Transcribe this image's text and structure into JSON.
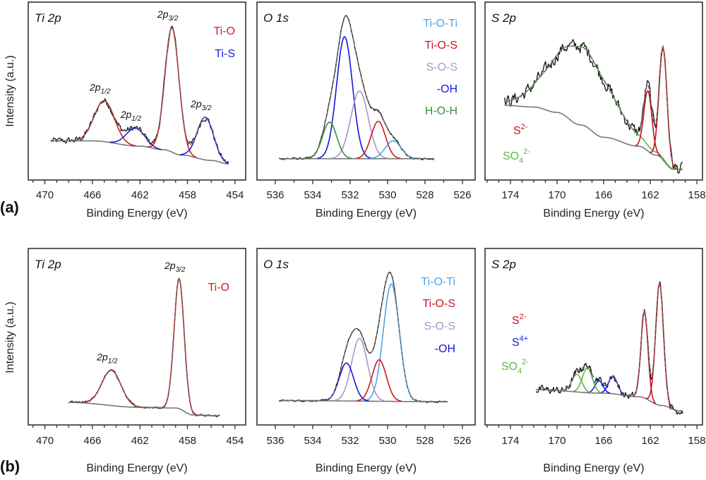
{
  "figure": {
    "ylabel": "Intensity (a.u.)",
    "panel_labels": [
      "(a)",
      "(b)"
    ]
  },
  "chart_data": [
    {
      "type": "line",
      "row": "a",
      "title": "Ti 2p",
      "xlabel": "Binding Energy (eV)",
      "xlim": [
        471.4,
        453.1
      ],
      "ylim": [
        0,
        100
      ],
      "x_reversed": true,
      "xticks": [
        "470",
        "466",
        "462",
        "458",
        "454"
      ],
      "minor_tick_step": 1,
      "data_range": [
        469.5,
        454.5
      ],
      "background": [
        [
          469.5,
          22
        ],
        [
          466,
          22
        ],
        [
          462,
          19
        ],
        [
          460,
          17
        ],
        [
          458.5,
          14
        ],
        [
          456,
          11
        ],
        [
          454.5,
          9
        ]
      ],
      "components": [
        {
          "species": "Ti-O",
          "center": 459.3,
          "amplitude": 70,
          "fwhm": 1.4
        },
        {
          "species": "Ti-O",
          "center": 465.0,
          "amplitude": 23,
          "fwhm": 2.0
        },
        {
          "species": "Ti-S",
          "center": 462.4,
          "amplitude": 10,
          "fwhm": 1.8
        },
        {
          "species": "Ti-S",
          "center": 456.5,
          "amplitude": 24,
          "fwhm": 1.6
        }
      ],
      "legend": [
        {
          "text": "Ti-O",
          "color": "#d81e1e"
        },
        {
          "text": "Ti-S",
          "color": "#1a1ae6"
        }
      ],
      "annotations": [
        {
          "text": "2p",
          "sub": "3/2",
          "x": 459.3
        },
        {
          "text": "2p",
          "sub": "1/2",
          "x": 465.0
        },
        {
          "text": "2p",
          "sub": "1/2",
          "x": 462.4
        },
        {
          "text": "2p",
          "sub": "3/2",
          "x": 456.5
        }
      ]
    },
    {
      "type": "line",
      "row": "a",
      "title": "O 1s",
      "xlabel": "Binding Energy (eV)",
      "xlim": [
        536.98,
        525.32
      ],
      "ylim": [
        0,
        100
      ],
      "x_reversed": true,
      "xticks": [
        "536",
        "534",
        "532",
        "530",
        "528",
        "526"
      ],
      "minor_tick_step": 1,
      "data_range": [
        535.8,
        527.5
      ],
      "background": [
        [
          535.8,
          12
        ],
        [
          527.5,
          12
        ]
      ],
      "components": [
        {
          "species": "-OH",
          "center": 532.3,
          "amplitude": 68.5,
          "fwhm": 1.0
        },
        {
          "species": "S-O-S",
          "center": 531.5,
          "amplitude": 38,
          "fwhm": 1.1
        },
        {
          "species": "H-O-H",
          "center": 533.1,
          "amplitude": 20.5,
          "fwhm": 0.9
        },
        {
          "species": "Ti-O-S",
          "center": 530.5,
          "amplitude": 21,
          "fwhm": 0.9
        },
        {
          "species": "Ti-O-Ti",
          "center": 529.7,
          "amplitude": 10,
          "fwhm": 1.0
        }
      ],
      "legend": [
        {
          "text": "Ti-O-Ti",
          "color": "#4da6e8"
        },
        {
          "text": "Ti-O-S",
          "color": "#d0161e"
        },
        {
          "text": "S-O-S",
          "color": "#a896c8"
        },
        {
          "text": "-OH",
          "color": "#1515e0"
        },
        {
          "text": "H-O-H",
          "color": "#3a8f3a"
        }
      ],
      "annotations": []
    },
    {
      "type": "line",
      "row": "a",
      "title": "S 2p",
      "xlabel": "Binding Energy (eV)",
      "xlim": [
        176.18,
        157.52
      ],
      "ylim": [
        0,
        100
      ],
      "x_reversed": true,
      "xticks": [
        "174",
        "170",
        "166",
        "162",
        "158"
      ],
      "minor_tick_step": 1,
      "data_range": [
        174.5,
        159.2
      ],
      "background": [
        [
          174.5,
          42
        ],
        [
          172,
          41
        ],
        [
          170,
          38
        ],
        [
          168,
          31
        ],
        [
          166,
          24
        ],
        [
          163,
          19
        ],
        [
          161.5,
          14
        ],
        [
          160,
          6
        ],
        [
          159.2,
          6
        ]
      ],
      "components": [
        {
          "species": "SO4 2-",
          "center": 168.0,
          "amplitude": 44,
          "fwhm": 6.0
        },
        {
          "species": "S2-",
          "center": 162.2,
          "amplitude": 34,
          "fwhm": 0.8
        },
        {
          "species": "S2-",
          "center": 160.9,
          "amplitude": 63,
          "fwhm": 0.8
        }
      ],
      "legend": [
        {
          "text": "S",
          "sup": "2-",
          "color": "#c8101e"
        },
        {
          "text": "SO",
          "sub": "4",
          "sup": "2-",
          "color": "#5cb845"
        }
      ],
      "annotations": []
    },
    {
      "type": "line",
      "row": "b",
      "title": "Ti 2p",
      "xlabel": "Binding Energy (eV)",
      "xlim": [
        471.4,
        453.1
      ],
      "ylim": [
        0,
        100
      ],
      "x_reversed": true,
      "xticks": [
        "470",
        "466",
        "462",
        "458",
        "454"
      ],
      "minor_tick_step": 1,
      "data_range": [
        468,
        455.3
      ],
      "background": [
        [
          468,
          12.8
        ],
        [
          462,
          10
        ],
        [
          459,
          9.6
        ],
        [
          457.5,
          5.6
        ],
        [
          455.3,
          5.2
        ]
      ],
      "components": [
        {
          "species": "Ti-O",
          "center": 458.7,
          "amplitude": 73.5,
          "fwhm": 1.0
        },
        {
          "species": "Ti-O",
          "center": 464.4,
          "amplitude": 20,
          "fwhm": 1.9
        }
      ],
      "legend": [
        {
          "text": "Ti-O",
          "color": "#d81e1e"
        }
      ],
      "annotations": [
        {
          "text": "2p",
          "sub": "3/2",
          "x": 458.7
        },
        {
          "text": "2p",
          "sub": "1/2",
          "x": 464.4
        }
      ]
    },
    {
      "type": "line",
      "row": "b",
      "title": "O 1s",
      "xlabel": "Binding Energy (eV)",
      "xlim": [
        536.98,
        525.32
      ],
      "ylim": [
        0,
        100
      ],
      "x_reversed": true,
      "xticks": [
        "536",
        "534",
        "532",
        "530",
        "528",
        "526"
      ],
      "minor_tick_step": 1,
      "data_range": [
        535.8,
        526.8
      ],
      "background": [
        [
          535.8,
          13.8
        ],
        [
          526.8,
          13.2
        ]
      ],
      "components": [
        {
          "species": "Ti-O-Ti",
          "center": 529.8,
          "amplitude": 66.5,
          "fwhm": 1.0
        },
        {
          "species": "S-O-S",
          "center": 531.5,
          "amplitude": 35.5,
          "fwhm": 1.0
        },
        {
          "species": "-OH",
          "center": 532.2,
          "amplitude": 21.5,
          "fwhm": 0.9
        },
        {
          "species": "Ti-O-S",
          "center": 530.45,
          "amplitude": 23.5,
          "fwhm": 0.9
        }
      ],
      "legend": [
        {
          "text": "Ti-O-Ti",
          "color": "#4da6e8"
        },
        {
          "text": "Ti-O-S",
          "color": "#d0161e"
        },
        {
          "text": "S-O-S",
          "color": "#a896c8"
        },
        {
          "text": "-OH",
          "color": "#1515e0"
        }
      ],
      "annotations": []
    },
    {
      "type": "line",
      "row": "b",
      "title": "S 2p",
      "xlabel": "Binding Energy (eV)",
      "xlim": [
        176.18,
        157.52
      ],
      "ylim": [
        0,
        100
      ],
      "x_reversed": true,
      "xticks": [
        "174",
        "170",
        "166",
        "162",
        "158"
      ],
      "minor_tick_step": 1,
      "data_range": [
        171.8,
        159.2
      ],
      "background": [
        [
          171.8,
          20
        ],
        [
          166,
          18
        ],
        [
          163,
          16
        ],
        [
          161,
          11
        ],
        [
          159.5,
          8
        ],
        [
          159.2,
          8
        ]
      ],
      "components": [
        {
          "species": "S2-",
          "center": 162.5,
          "amplitude": 49,
          "fwhm": 0.7
        },
        {
          "species": "S2-",
          "center": 161.2,
          "amplitude": 69,
          "fwhm": 0.8
        },
        {
          "species": "S4+",
          "center": 166.4,
          "amplitude": 7,
          "fwhm": 0.8
        },
        {
          "species": "S4+",
          "center": 165.2,
          "amplitude": 10,
          "fwhm": 0.9
        },
        {
          "species": "SO4 2-",
          "center": 168.3,
          "amplitude": 10,
          "fwhm": 1.0
        },
        {
          "species": "SO4 2-",
          "center": 167.4,
          "amplitude": 14,
          "fwhm": 1.0
        }
      ],
      "legend": [
        {
          "text": "S",
          "sup": "2-",
          "color": "#c8101e"
        },
        {
          "text": "S",
          "sup": "4+",
          "color": "#1a1ae6"
        },
        {
          "text": "SO",
          "sub": "4",
          "sup": "2-",
          "color": "#5cb845"
        }
      ],
      "annotations": []
    }
  ]
}
